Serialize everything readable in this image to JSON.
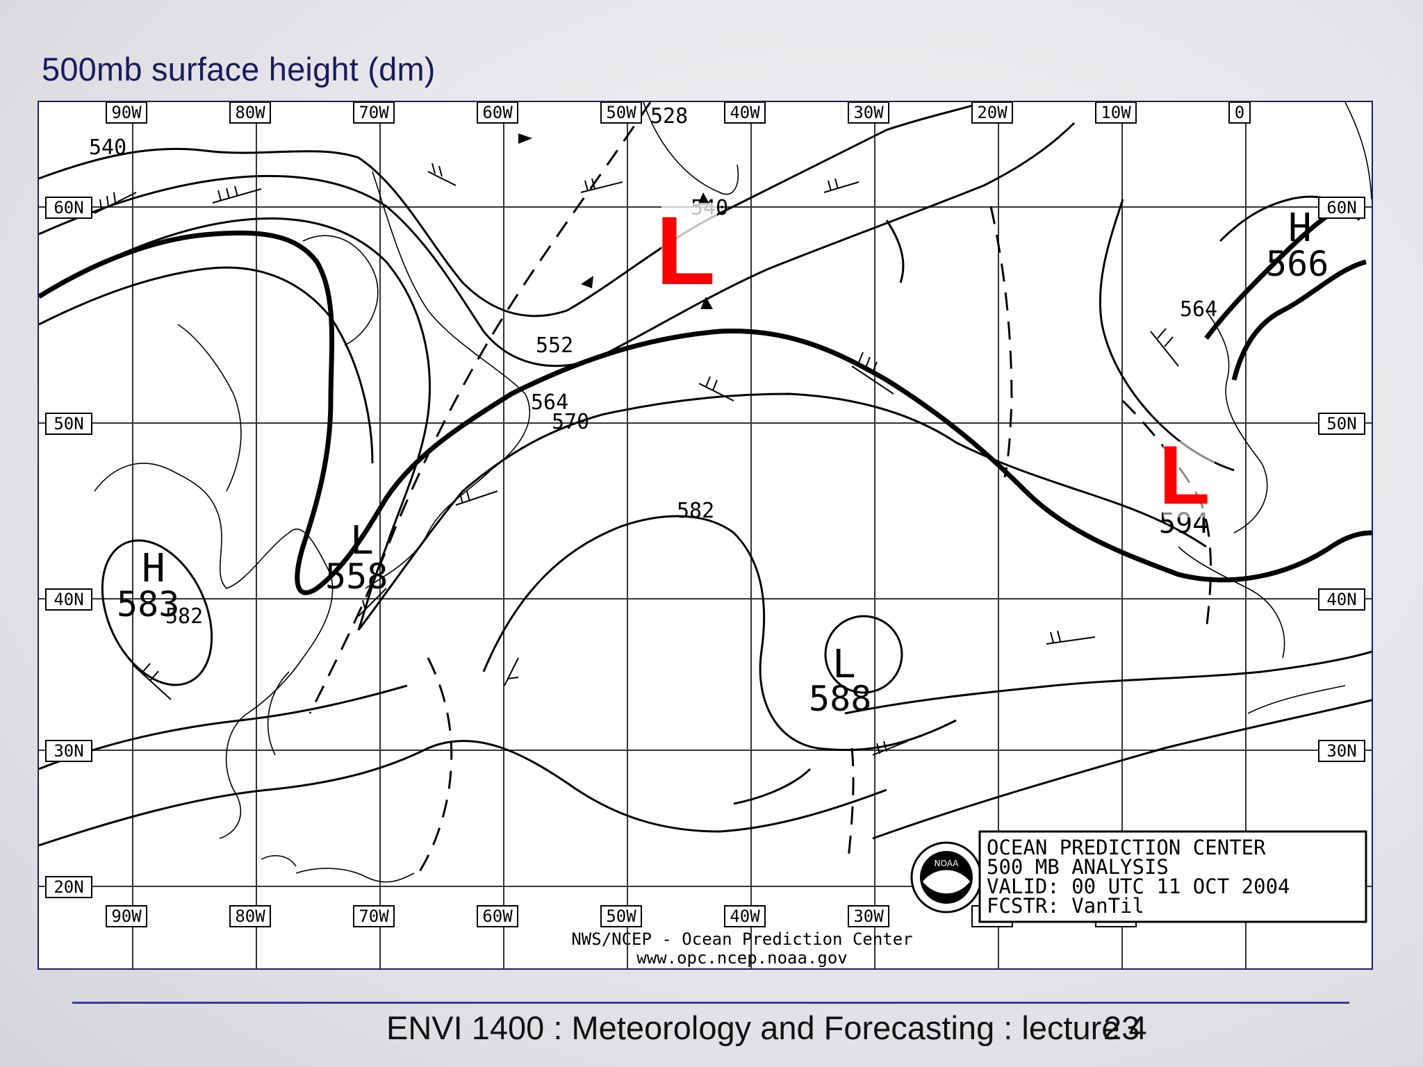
{
  "slide": {
    "title": "500mb surface height (dm)",
    "footer": "ENVI 1400 : Meteorology and Forecasting : lecture 4",
    "page_number": "23"
  },
  "map": {
    "lon_labels_top": [
      "90W",
      "80W",
      "70W",
      "60W",
      "50W",
      "40W",
      "30W",
      "20W",
      "10W",
      "0"
    ],
    "lon_labels_bottom": [
      "90W",
      "80W",
      "70W",
      "60W",
      "50W",
      "40W",
      "30W",
      "20W",
      "10W"
    ],
    "lat_labels": [
      "60N",
      "50N",
      "40N",
      "30N",
      "20N"
    ],
    "contour_labels": [
      "528",
      "540",
      "540",
      "552",
      "564",
      "570",
      "582",
      "564",
      "594",
      "582"
    ],
    "centers": [
      {
        "symbol": "H",
        "value": "583"
      },
      {
        "symbol": "L",
        "value": "558"
      },
      {
        "symbol": "L",
        "value": "588"
      },
      {
        "symbol": "H",
        "value": "566"
      }
    ],
    "highlight_markers": [
      "L",
      "L"
    ],
    "highlight_color": "#ff0000",
    "info_box": [
      "OCEAN PREDICTION CENTER",
      "500 MB ANALYSIS",
      "VALID:  00 UTC 11 OCT 2004",
      "FCSTR:  VanTil"
    ],
    "logo_text": "NOAA",
    "credit_line1": "NWS/NCEP - Ocean Prediction Center",
    "credit_line2": "www.opc.ncep.noaa.gov"
  }
}
